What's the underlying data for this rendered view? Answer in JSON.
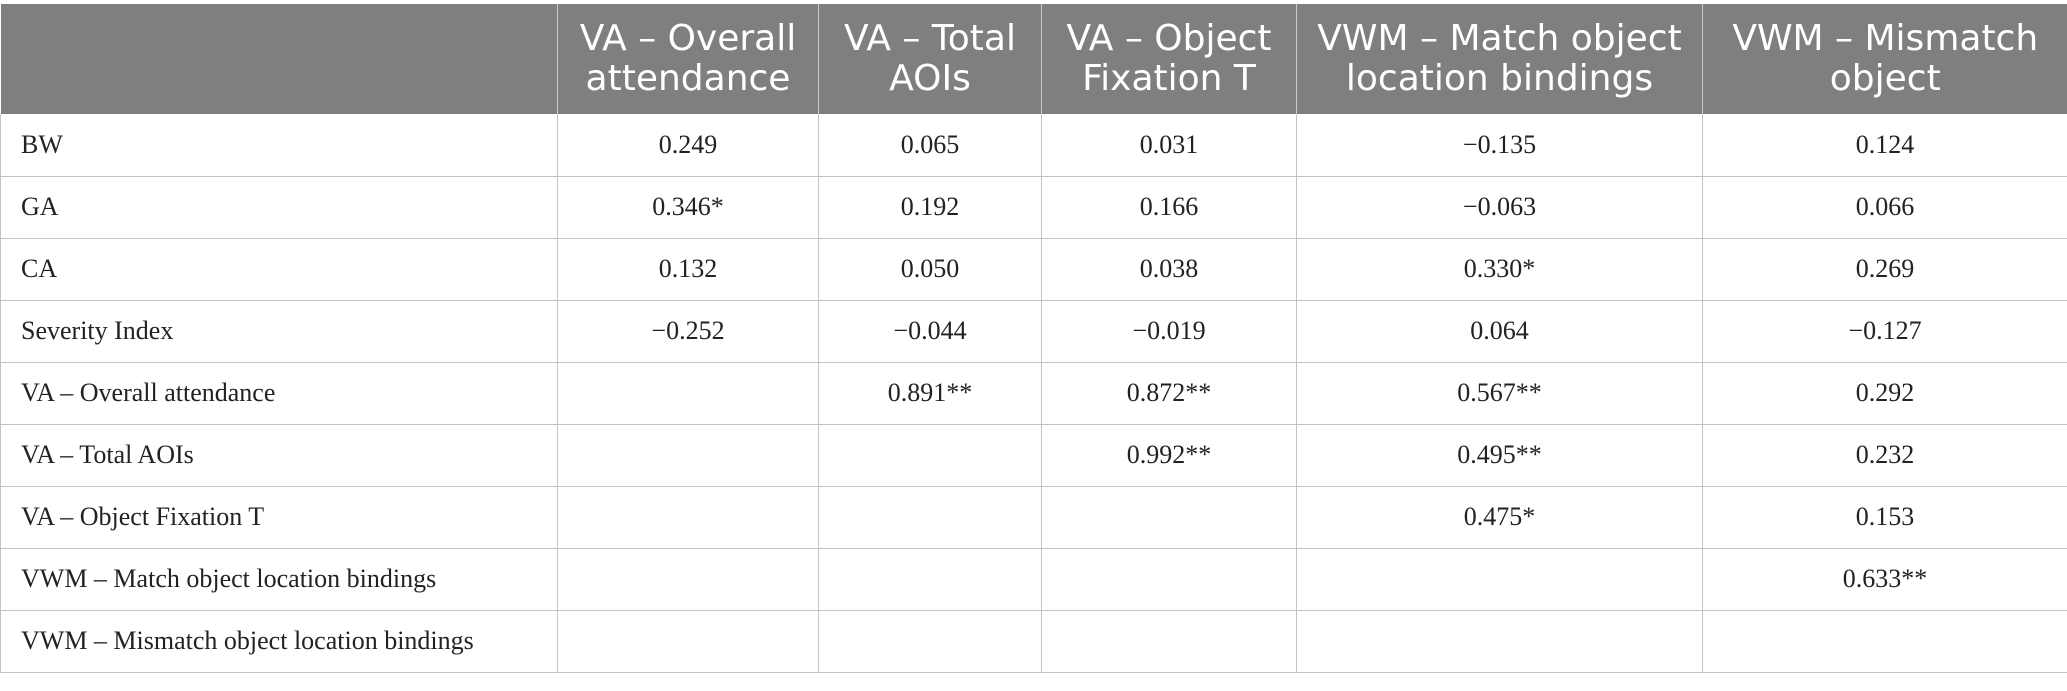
{
  "table": {
    "headers": [
      "",
      "VA – Overall attendance",
      "VA – Total AOIs",
      "VA – Object Fixation T",
      "VWM – Match object location bindings",
      "VWM – Mismatch object"
    ],
    "rows": [
      [
        "BW",
        "0.249",
        "0.065",
        "0.031",
        "−0.135",
        "0.124"
      ],
      [
        "GA",
        "0.346*",
        "0.192",
        "0.166",
        "−0.063",
        "0.066"
      ],
      [
        "CA",
        "0.132",
        "0.050",
        "0.038",
        "0.330*",
        "0.269"
      ],
      [
        "Severity Index",
        "−0.252",
        "−0.044",
        "−0.019",
        "0.064",
        "−0.127"
      ],
      [
        "VA – Overall attendance",
        "",
        "0.891**",
        "0.872**",
        "0.567**",
        "0.292"
      ],
      [
        "VA – Total AOIs",
        "",
        "",
        "0.992**",
        "0.495**",
        "0.232"
      ],
      [
        "VA – Object Fixation T",
        "",
        "",
        "",
        "0.475*",
        "0.153"
      ],
      [
        "VWM – Match object location bindings",
        "",
        "",
        "",
        "",
        "0.633**"
      ],
      [
        "VWM – Mismatch object location bindings",
        "",
        "",
        "",
        "",
        ""
      ]
    ]
  }
}
